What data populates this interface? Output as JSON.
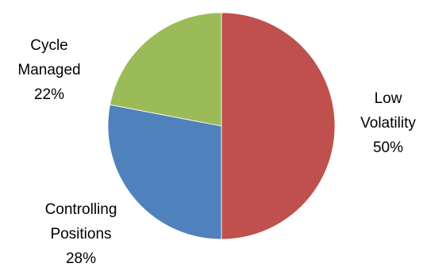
{
  "chart_data": {
    "type": "pie",
    "title": "",
    "slices": [
      {
        "label": [
          "Low",
          "Volatility"
        ],
        "display": "50%",
        "value": 50,
        "color": "#C0504D"
      },
      {
        "label": [
          "Controlling",
          "Positions"
        ],
        "display": "28%",
        "value": 28,
        "color": "#4F81BD"
      },
      {
        "label": [
          "Cycle",
          "Managed"
        ],
        "display": "22%",
        "value": 22,
        "color": "#9BBB59"
      }
    ],
    "start_angle_deg": 0,
    "direction": "clockwise",
    "legend": "none",
    "data_labels": "outside"
  }
}
